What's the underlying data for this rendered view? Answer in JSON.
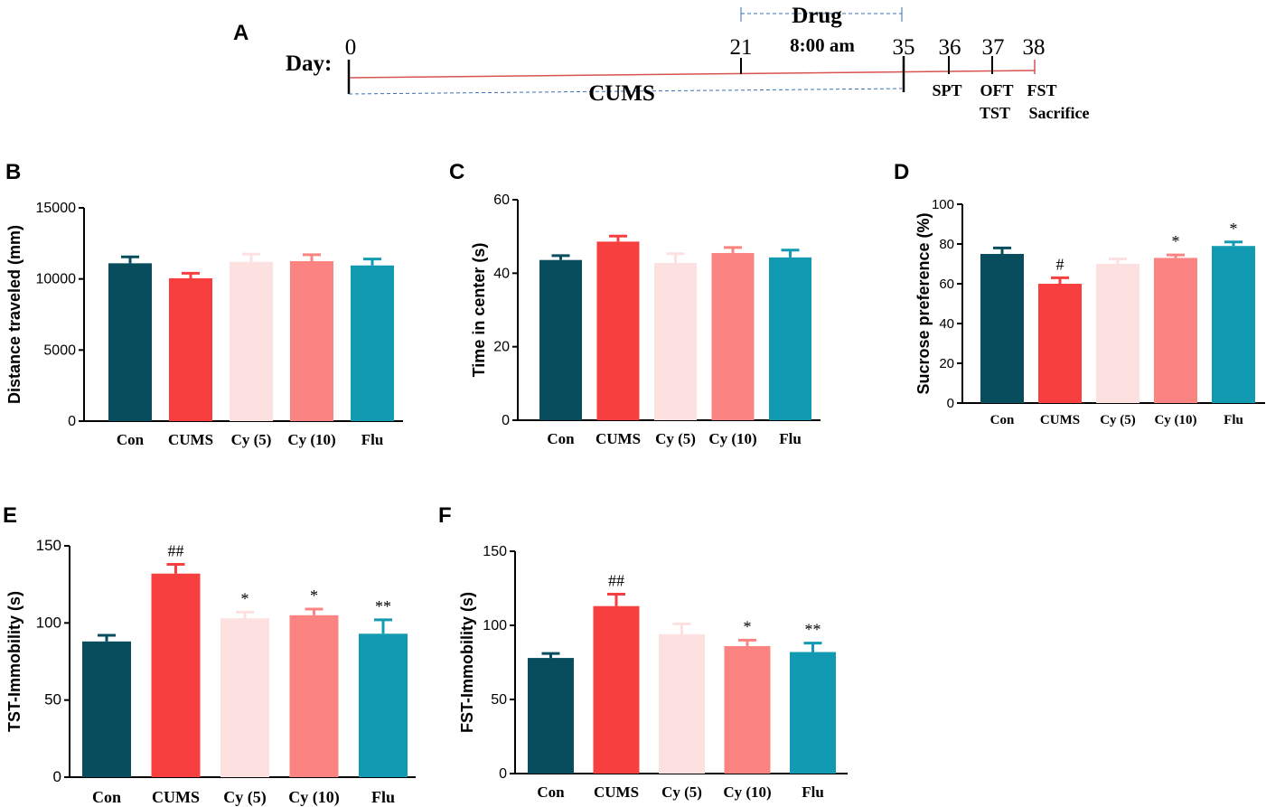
{
  "colors": {
    "con": "#074d5e",
    "cums": "#f73f3f",
    "cy5": "#fde0e0",
    "cy10": "#fb8482",
    "flu": "#119ab2",
    "axis": "#000000",
    "timeline": "#d9534f",
    "dash": "#3b6fb5"
  },
  "timeline": {
    "panel_label": "A",
    "day_label": "Day:",
    "days": [
      "0",
      "21",
      "35",
      "36",
      "37",
      "38"
    ],
    "drug_label": "Drug",
    "time_label": "8:00 am",
    "cums_label": "CUMS",
    "tests": [
      "SPT",
      "OFT",
      "TST",
      "FST",
      "Sacrifice"
    ]
  },
  "chart_data": [
    {
      "panel": "B",
      "type": "bar",
      "categories": [
        "Con",
        "CUMS",
        "Cy (5)",
        "Cy (10)",
        "Flu"
      ],
      "values": [
        11100,
        10050,
        11200,
        11250,
        10950
      ],
      "errors": [
        450,
        350,
        550,
        450,
        450
      ],
      "annotations": [
        "",
        "",
        "",
        "",
        ""
      ],
      "ylabel": "Distance traveled (mm)",
      "ylim": [
        0,
        15000
      ],
      "yticks": [
        "0",
        "5000",
        "10000",
        "15000"
      ],
      "ytick_values": [
        0,
        5000,
        10000,
        15000
      ]
    },
    {
      "panel": "C",
      "type": "bar",
      "categories": [
        "Con",
        "CUMS",
        "Cy (5)",
        "Cy (10)",
        "Flu"
      ],
      "values": [
        43.6,
        48.6,
        42.8,
        45.5,
        44.3
      ],
      "errors": [
        1.2,
        1.5,
        2.5,
        1.5,
        2.0
      ],
      "annotations": [
        "",
        "",
        "",
        "",
        ""
      ],
      "ylabel": "Time in center (s)",
      "ylim": [
        0,
        60
      ],
      "yticks": [
        "0",
        "20",
        "40",
        "60"
      ],
      "ytick_values": [
        0,
        20,
        40,
        60
      ]
    },
    {
      "panel": "D",
      "type": "bar",
      "categories": [
        "Con",
        "CUMS",
        "Cy (5)",
        "Cy (10)",
        "Flu"
      ],
      "values": [
        75,
        60,
        70,
        73,
        79
      ],
      "errors": [
        3,
        3,
        2.5,
        1.5,
        2
      ],
      "annotations": [
        "",
        "#",
        "",
        "*",
        "*"
      ],
      "ylabel": "Sucrose preference (%)",
      "ylim": [
        0,
        100
      ],
      "yticks": [
        "0",
        "20",
        "40",
        "60",
        "80",
        "100"
      ],
      "ytick_values": [
        0,
        20,
        40,
        60,
        80,
        100
      ]
    },
    {
      "panel": "E",
      "type": "bar",
      "categories": [
        "Con",
        "CUMS",
        "Cy (5)",
        "Cy (10)",
        "Flu"
      ],
      "values": [
        88,
        132,
        103,
        105,
        93
      ],
      "errors": [
        4,
        6,
        4,
        4,
        9
      ],
      "annotations": [
        "",
        "##",
        "*",
        "*",
        "**"
      ],
      "ylabel": "TST-Immobility (s)",
      "ylim": [
        0,
        150
      ],
      "yticks": [
        "0",
        "50",
        "100",
        "150"
      ],
      "ytick_values": [
        0,
        50,
        100,
        150
      ]
    },
    {
      "panel": "F",
      "type": "bar",
      "categories": [
        "Con",
        "CUMS",
        "Cy (5)",
        "Cy (10)",
        "Flu"
      ],
      "values": [
        78,
        113,
        94,
        86,
        82
      ],
      "errors": [
        3,
        8,
        7,
        4,
        6
      ],
      "annotations": [
        "",
        "##",
        "",
        "*",
        "**"
      ],
      "ylabel": "FST-Immobility (s)",
      "ylim": [
        0,
        150
      ],
      "yticks": [
        "0",
        "50",
        "100",
        "150"
      ],
      "ytick_values": [
        0,
        50,
        100,
        150
      ]
    }
  ]
}
